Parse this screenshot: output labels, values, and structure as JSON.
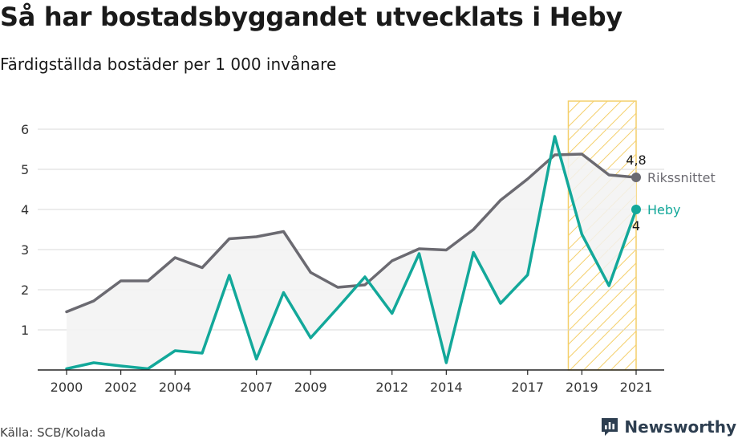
{
  "title": "Så har bostadsbyggandet utvecklats i Heby",
  "subtitle": "Färdigställda bostäder per 1 000 invånare",
  "source": "Källa: SCB/Kolada",
  "brand": {
    "name": "Newsworthy",
    "icon": "newsworthy-logo-icon"
  },
  "colors": {
    "heby": "#13a89a",
    "riket": "#6b6a71",
    "band_fill": "#f2f2f2",
    "highlight": "#f4cf6a"
  },
  "chart_data": {
    "type": "line",
    "x": [
      2000,
      2001,
      2002,
      2003,
      2004,
      2005,
      2006,
      2007,
      2008,
      2009,
      2010,
      2011,
      2012,
      2013,
      2014,
      2015,
      2016,
      2017,
      2018,
      2019,
      2020,
      2021
    ],
    "xticks": [
      "2000",
      "2002",
      "2004",
      "2007",
      "2009",
      "2012",
      "2014",
      "2017",
      "2019",
      "2021"
    ],
    "yticks": [
      "1",
      "2",
      "3",
      "4",
      "5",
      "6"
    ],
    "ylim": [
      0,
      6
    ],
    "series": [
      {
        "name": "Rikssnittet",
        "color": "#6b6a71",
        "values": [
          1.45,
          1.72,
          2.22,
          2.22,
          2.8,
          2.55,
          3.27,
          3.32,
          3.45,
          2.43,
          2.06,
          2.12,
          2.72,
          3.02,
          2.99,
          3.5,
          4.23,
          4.76,
          5.36,
          5.38,
          4.86,
          4.8
        ],
        "end_label": "4,8"
      },
      {
        "name": "Heby",
        "color": "#13a89a",
        "values": [
          0.03,
          0.18,
          0.1,
          0.03,
          0.48,
          0.42,
          2.36,
          0.27,
          1.93,
          0.8,
          1.55,
          2.32,
          1.41,
          2.9,
          0.18,
          2.93,
          1.66,
          2.37,
          5.82,
          3.38,
          2.1,
          4.0
        ],
        "end_label": "4"
      }
    ],
    "highlight_range": [
      2018.5,
      2021
    ],
    "grid": true,
    "legend": "direct labels at line ends"
  }
}
